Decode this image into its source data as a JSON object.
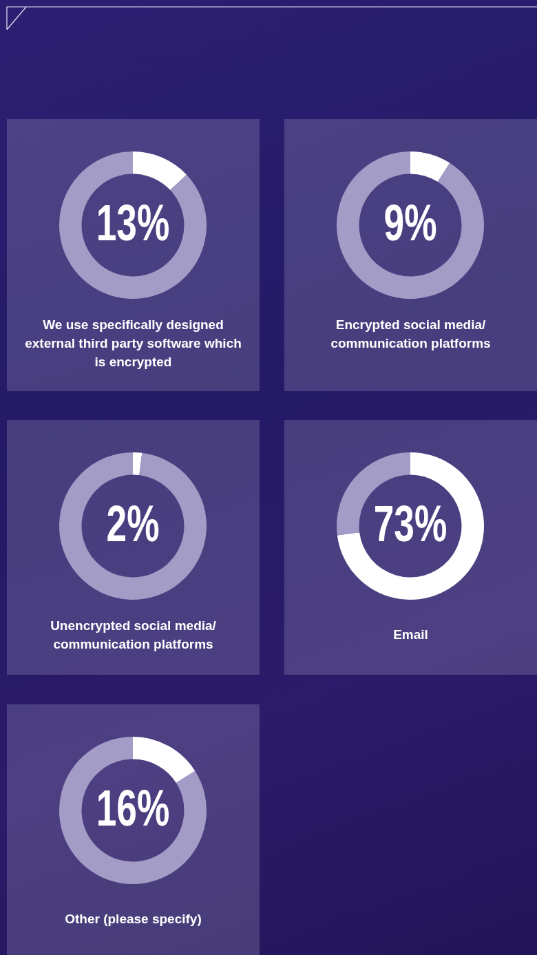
{
  "chart_data": [
    {
      "type": "donut",
      "title": "We use specifically designed external third party software which is encrypted",
      "categories": [
        null,
        null
      ],
      "values": [
        13,
        87
      ],
      "colors": [
        "#ffffff",
        "#a29cc6"
      ],
      "value_labels": [
        "13%",
        null
      ],
      "legend": false
    },
    {
      "type": "donut",
      "title": "Encrypted social media/ communication platforms",
      "categories": [
        null,
        null
      ],
      "values": [
        9,
        91
      ],
      "colors": [
        "#ffffff",
        "#a29cc6"
      ],
      "value_labels": [
        "9%",
        null
      ],
      "legend": false
    },
    {
      "type": "donut",
      "title": "Unencrypted social media/ communication platforms",
      "categories": [
        null,
        null
      ],
      "values": [
        2,
        98
      ],
      "colors": [
        "#ffffff",
        "#a29cc6"
      ],
      "value_labels": [
        "2%",
        null
      ],
      "legend": false
    },
    {
      "type": "donut",
      "title": "Email",
      "categories": [
        null,
        null
      ],
      "values": [
        73,
        27
      ],
      "colors": [
        "#ffffff",
        "#a29cc6"
      ],
      "value_labels": [
        "73%",
        null
      ],
      "legend": false
    },
    {
      "type": "donut",
      "title": "Other (please specify)",
      "categories": [
        null,
        null
      ],
      "values": [
        16,
        84
      ],
      "colors": [
        "#ffffff",
        "#a29cc6"
      ],
      "value_labels": [
        "16%",
        null
      ],
      "legend": false
    }
  ]
}
